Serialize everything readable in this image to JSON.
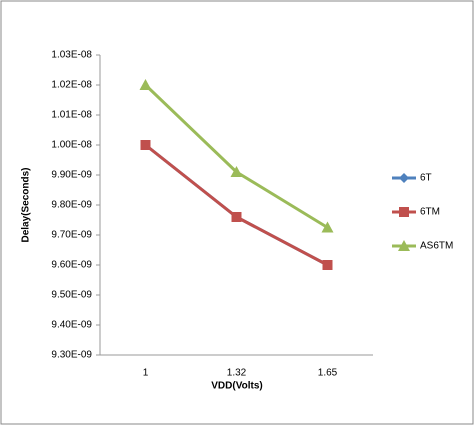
{
  "chart_data": {
    "type": "line",
    "xlabel": "VDD(Volts)",
    "ylabel": "Delay(Seconds)",
    "categories": [
      "1",
      "1.32",
      "1.65"
    ],
    "series": [
      {
        "name": "6T",
        "color": "#4f81bd",
        "marker": "diamond",
        "values": [
          1e-08,
          9.76e-09,
          9.6e-09
        ]
      },
      {
        "name": "6TM",
        "color": "#c0504d",
        "marker": "square",
        "values": [
          1e-08,
          9.76e-09,
          9.6e-09
        ]
      },
      {
        "name": "AS6TM",
        "color": "#9bbb59",
        "marker": "triangle",
        "values": [
          1.02e-08,
          9.91e-09,
          9.725e-09
        ]
      }
    ],
    "ylim": [
      9.3e-09,
      1.03e-08
    ],
    "yticks": [
      {
        "value": 9.3e-09,
        "label": "9.30E-09"
      },
      {
        "value": 9.4e-09,
        "label": "9.40E-09"
      },
      {
        "value": 9.5e-09,
        "label": "9.50E-09"
      },
      {
        "value": 9.6e-09,
        "label": "9.60E-09"
      },
      {
        "value": 9.7e-09,
        "label": "9.70E-09"
      },
      {
        "value": 9.8e-09,
        "label": "9.80E-09"
      },
      {
        "value": 9.9e-09,
        "label": "9.90E-09"
      },
      {
        "value": 1e-08,
        "label": "1.00E-08"
      },
      {
        "value": 1.01e-08,
        "label": "1.01E-08"
      },
      {
        "value": 1.02e-08,
        "label": "1.02E-08"
      },
      {
        "value": 1.03e-08,
        "label": "1.03E-08"
      }
    ],
    "grid": false,
    "legend": "right"
  }
}
